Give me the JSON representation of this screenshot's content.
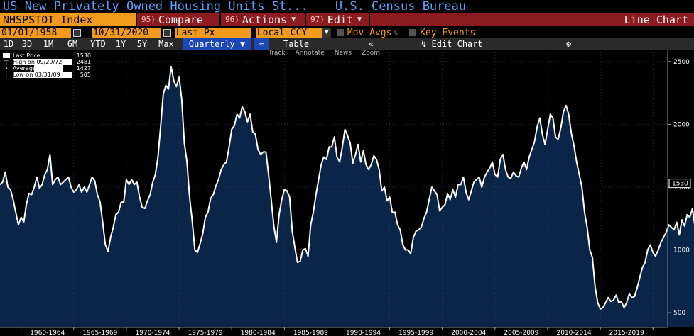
{
  "header": {
    "title": "US New Privately Owned Housing Units St...",
    "source": "U.S. Census Bureau"
  },
  "toolbar": {
    "ticker": "NHSPSTOT Index",
    "compare": {
      "num": "95)",
      "label": "Compare"
    },
    "actions": {
      "num": "96)",
      "label": "Actions"
    },
    "edit": {
      "num": "97)",
      "label": "Edit"
    },
    "chart_type": "Line Chart"
  },
  "range": {
    "start": "01/01/1958",
    "end": "10/31/2020",
    "field": "Last Px",
    "currency": "Local CCY",
    "mov_avgs": "Mov Avgs",
    "key_events": "Key Events"
  },
  "timeframes": [
    "1D",
    "3D",
    "1M",
    "6M",
    "YTD",
    "1Y",
    "5Y",
    "Max"
  ],
  "period": "Quarterly",
  "table_label": "Table",
  "edit_chart": "Edit Chart",
  "mini_tools": [
    "Track",
    "Annotate",
    "News",
    "Zoom"
  ],
  "legend": [
    {
      "label": "Last Price",
      "value": "1530"
    },
    {
      "label": "High on 09/29/72",
      "value": "2481"
    },
    {
      "label": "Average",
      "value": "1427"
    },
    {
      "label": "Low on 03/31/09",
      "value": "505"
    }
  ],
  "colors": {
    "line": "#ffffff",
    "fill": "#0a2548",
    "accent": "#f29a1c",
    "menu": "#8c1a1f"
  },
  "chart_data": {
    "type": "area",
    "frequency": "quarterly",
    "x_start": 1958.0,
    "x_step": 0.25,
    "yticks": [
      500,
      1000,
      1500,
      2000,
      2500
    ],
    "xlabels": [
      "1960-1964",
      "1965-1969",
      "1970-1974",
      "1975-1979",
      "1980-1984",
      "1985-1989",
      "1990-1994",
      "1995-1999",
      "2000-2004",
      "2005-2009",
      "2010-2014",
      "2015-2019"
    ],
    "last_value": "1530",
    "values": [
      1520,
      1540,
      1620,
      1500,
      1480,
      1400,
      1300,
      1200,
      1260,
      1220,
      1360,
      1450,
      1440,
      1500,
      1580,
      1490,
      1520,
      1600,
      1640,
      1760,
      1520,
      1560,
      1580,
      1520,
      1540,
      1560,
      1580,
      1500,
      1460,
      1480,
      1520,
      1460,
      1500,
      1460,
      1520,
      1580,
      1550,
      1440,
      1380,
      1220,
      1040,
      990,
      1100,
      1180,
      1280,
      1300,
      1380,
      1380,
      1560,
      1520,
      1560,
      1520,
      1540,
      1420,
      1340,
      1330,
      1390,
      1440,
      1540,
      1600,
      1740,
      1980,
      2240,
      2310,
      2280,
      2460,
      2350,
      2300,
      2380,
      2200,
      1850,
      1700,
      1420,
      1230,
      1000,
      980,
      1050,
      1130,
      1260,
      1300,
      1410,
      1440,
      1510,
      1560,
      1640,
      1680,
      1700,
      1820,
      1960,
      1990,
      2080,
      2050,
      2140,
      2100,
      2020,
      2080,
      1940,
      1920,
      1800,
      1760,
      1780,
      1780,
      1600,
      1400,
      1190,
      1060,
      1280,
      1400,
      1480,
      1470,
      1420,
      1150,
      1020,
      900,
      910,
      1000,
      1010,
      950,
      1200,
      1300,
      1440,
      1560,
      1680,
      1740,
      1720,
      1820,
      1820,
      1900,
      1740,
      1700,
      1820,
      1960,
      1910,
      1850,
      1690,
      1760,
      1840,
      1700,
      1790,
      1680,
      1640,
      1680,
      1750,
      1720,
      1640,
      1470,
      1500,
      1390,
      1420,
      1300,
      1300,
      1200,
      1160,
      1040,
      1000,
      1000,
      970,
      1100,
      1150,
      1160,
      1180,
      1250,
      1300,
      1400,
      1500,
      1470,
      1440,
      1310,
      1340,
      1360,
      1450,
      1400,
      1480,
      1420,
      1520,
      1520,
      1580,
      1460,
      1400,
      1470,
      1540,
      1560,
      1580,
      1500,
      1580,
      1620,
      1650,
      1700,
      1600,
      1580,
      1720,
      1760,
      1640,
      1580,
      1570,
      1620,
      1590,
      1580,
      1650,
      1700,
      1640,
      1740,
      1800,
      1860,
      1980,
      2050,
      1920,
      1840,
      1960,
      2080,
      2050,
      1900,
      1880,
      1970,
      2100,
      2150,
      2080,
      1930,
      1830,
      1700,
      1600,
      1500,
      1300,
      1180,
      1000,
      940,
      710,
      580,
      530,
      540,
      580,
      620,
      590,
      600,
      640,
      580,
      590,
      540,
      580,
      650,
      620,
      630,
      700,
      780,
      860,
      900,
      1000,
      1040,
      980,
      950,
      1000,
      1060,
      1100,
      1140,
      1200,
      1180,
      1160,
      1220,
      1120,
      1240,
      1190,
      1280,
      1260,
      1330,
      1180,
      1240,
      1260,
      1300,
      1260,
      1600,
      1280,
      1280,
      1400,
      1530
    ]
  }
}
